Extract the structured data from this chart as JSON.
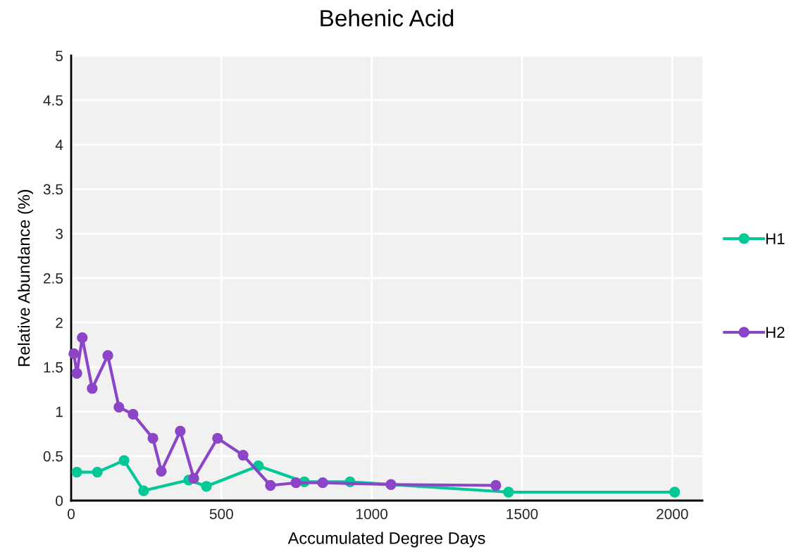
{
  "chart_data": {
    "type": "line",
    "title": "Behenic Acid",
    "xlabel": "Accumulated Degree Days",
    "ylabel": "Relative Abundance (%)",
    "xlim": [
      0,
      2100
    ],
    "xticks": [
      0,
      500,
      1000,
      1500,
      2000
    ],
    "ylim": [
      0,
      5
    ],
    "yticks": [
      0,
      0.5,
      1,
      1.5,
      2,
      2.5,
      3,
      3.5,
      4,
      4.5,
      5
    ],
    "grid": true,
    "legend": "right",
    "marker": "circle",
    "line_style": "solid",
    "series": [
      {
        "name": "H1",
        "color": "#00c896",
        "x": [
          19,
          87,
          176,
          241,
          391,
          450,
          623,
          776,
          928,
          1455,
          2008
        ],
        "values": [
          0.32,
          0.32,
          0.45,
          0.11,
          0.23,
          0.16,
          0.39,
          0.21,
          0.21,
          0.095,
          0.095
        ]
      },
      {
        "name": "H2",
        "color": "#8b45c6",
        "x": [
          9,
          19,
          37,
          70,
          122,
          159,
          206,
          272,
          300,
          363,
          408,
          487,
          572,
          663,
          748,
          837,
          1064,
          1413
        ],
        "values": [
          1.65,
          1.43,
          1.83,
          1.26,
          1.63,
          1.05,
          0.97,
          0.7,
          0.33,
          0.78,
          0.25,
          0.7,
          0.51,
          0.17,
          0.2,
          0.2,
          0.18,
          0.17
        ]
      }
    ]
  }
}
